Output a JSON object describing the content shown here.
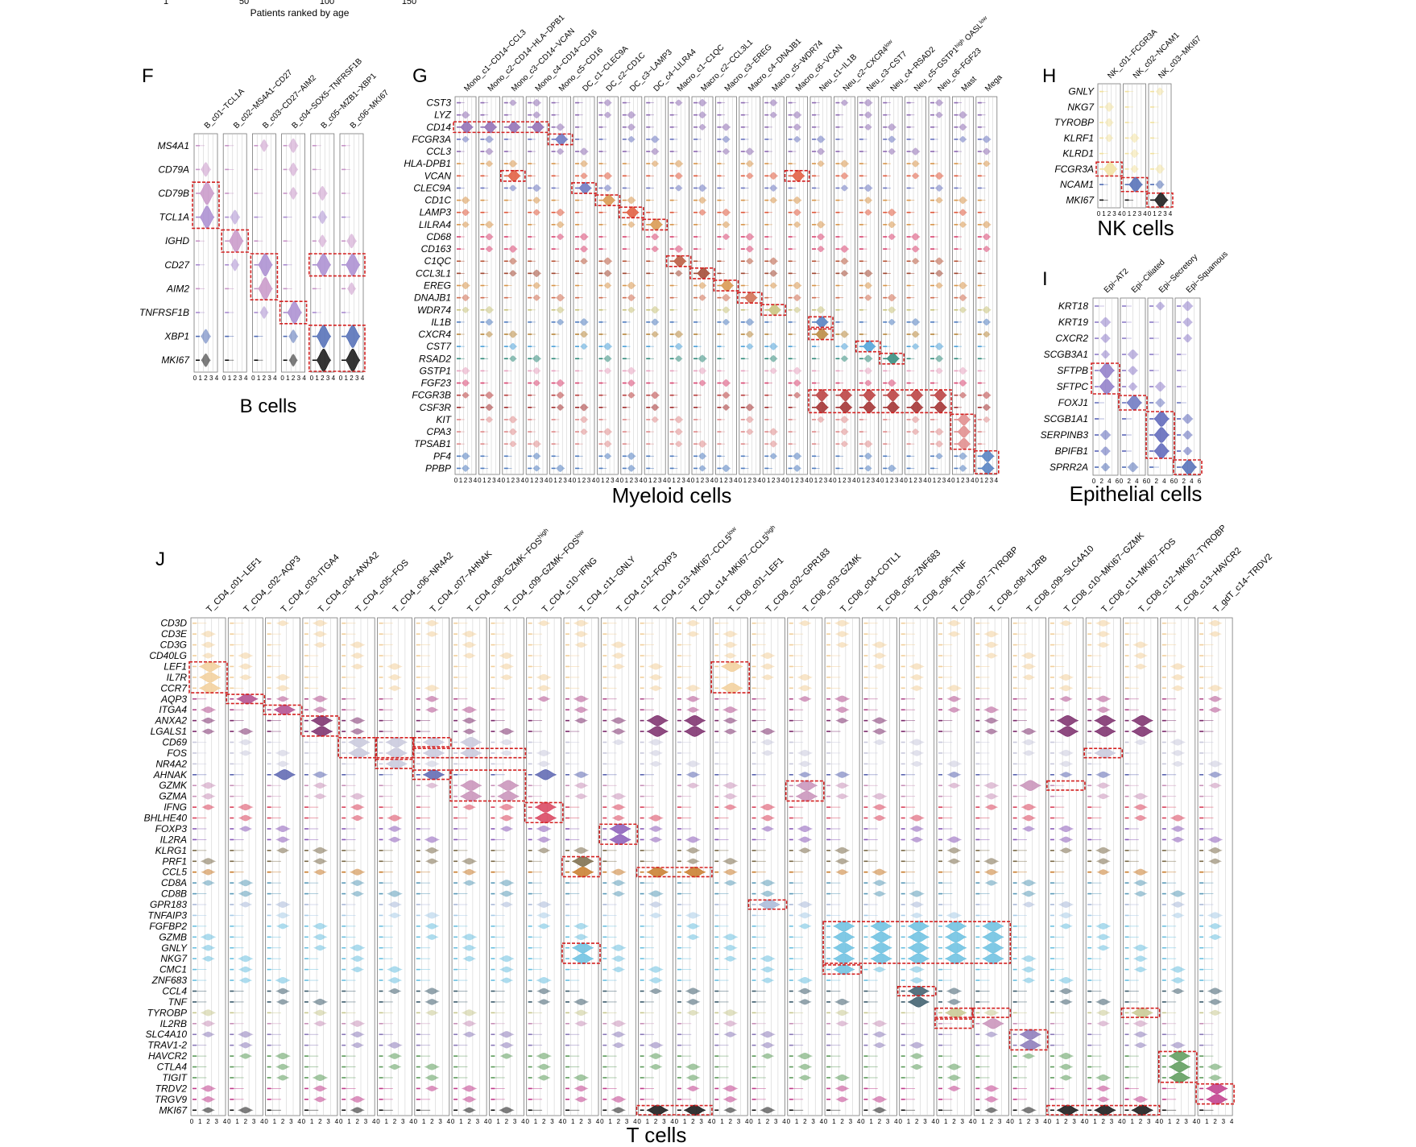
{
  "top_strip": {
    "ticks": [
      "1",
      "50",
      "100",
      "150"
    ],
    "xlabel": "Patients ranked by age"
  },
  "chart_data": [
    {
      "type": "violin",
      "panel_letter": "F",
      "title": "B cells",
      "clusters": [
        "B_c01−TCL1A",
        "B_c02−MS4A1−CD27",
        "B_c03−CD27−AIM2",
        "B_c04−SOX5−TNFRSF1B",
        "B_c05−MZB1−XBP1",
        "B_c06−MKI67"
      ],
      "genes": [
        "MS4A1",
        "CD79A",
        "CD79B",
        "TCL1A",
        "IGHD",
        "CD27",
        "AIM2",
        "TNFRSF1B",
        "XBP1",
        "MKI67"
      ],
      "gene_colors": [
        "#c896c8",
        "#c896c8",
        "#c896c8",
        "#a98cd0",
        "#c896c8",
        "#a98cd0",
        "#c896c8",
        "#a98cd0",
        "#4f6bb5",
        "#111111"
      ],
      "x_ticks": [
        "0",
        "1",
        "2",
        "3",
        "4"
      ],
      "markers": {
        "CD79B": [
          0
        ],
        "TCL1A": [
          0
        ],
        "IGHD": [
          1
        ],
        "CD27": [
          2,
          4,
          5
        ],
        "AIM2": [
          2
        ],
        "TNFRSF1B": [
          3
        ],
        "XBP1": [
          4,
          5
        ],
        "MKI67": [
          4,
          5
        ]
      },
      "highlights": [
        {
          "col": 0,
          "genes": [
            "CD79B",
            "TCL1A"
          ]
        },
        {
          "col": 1,
          "genes": [
            "IGHD"
          ]
        },
        {
          "col": 2,
          "genes": [
            "CD27",
            "AIM2"
          ]
        },
        {
          "col": 3,
          "genes": [
            "TNFRSF1B"
          ]
        },
        {
          "col": 4,
          "col_end": 5,
          "genes": [
            "CD27"
          ]
        },
        {
          "col": 4,
          "col_end": 5,
          "genes": [
            "XBP1",
            "MKI67"
          ]
        }
      ]
    },
    {
      "type": "violin",
      "panel_letter": "G",
      "title": "Myeloid cells",
      "clusters": [
        "Mono_c1−CD14−CCL3",
        "Mono_c2−CD14−HLA−DPB1",
        "Mono_c3−CD14−VCAN",
        "Mono_c4−CD14−CD16",
        "Mono_c5−CD16",
        "DC_c1−CLEC9A",
        "DC_c2−CD1C",
        "DC_c3−LAMP3",
        "DC_c4−LILRA4",
        "Macro_c1−C1QC",
        "Macro_c2−CCL3L1",
        "Macro_c3−EREG",
        "Macro_c4−DNAJB1",
        "Macro_c5−WDR74",
        "Macro_c6−VCAN",
        "Neu_c1−IL1B",
        "Neu_c2−CXCR4^low",
        "Neu_c3−CST7",
        "Neu_c4−RSAD2",
        "Neu_c5−GSTP1^high OASL^low",
        "Neu_c6−FGF23",
        "Mast",
        "Mega"
      ],
      "genes": [
        "CST3",
        "LYZ",
        "CD14",
        "FCGR3A",
        "CCL3",
        "HLA-DPB1",
        "VCAN",
        "CLEC9A",
        "CD1C",
        "LAMP3",
        "LILRA4",
        "CD68",
        "CD163",
        "C1QC",
        "CCL3L1",
        "EREG",
        "DNAJB1",
        "WDR74",
        "IL1B",
        "CXCR4",
        "CST7",
        "RSAD2",
        "GSTP1",
        "FGF23",
        "FCGR3B",
        "CSF3R",
        "KIT",
        "CPA3",
        "TPSAB1",
        "PF4",
        "PPBP"
      ],
      "gene_colors": [
        "#8e6bb3",
        "#8e6bb3",
        "#8e6bb3",
        "#6a74c0",
        "#8e6bb3",
        "#d8954a",
        "#e0583a",
        "#6a74c0",
        "#d8954a",
        "#e0583a",
        "#d8954a",
        "#d9426f",
        "#d9426f",
        "#b8563a",
        "#a0442e",
        "#d8954a",
        "#d06a4c",
        "#c8c27a",
        "#4f7cc0",
        "#b8863a",
        "#4aa0d8",
        "#2f8a7a",
        "#e8a3c0",
        "#d9426f",
        "#b83a3a",
        "#a02a2a",
        "#e08a8a",
        "#e08a8a",
        "#e08a8a",
        "#4f7cc0",
        "#4f7cc0"
      ],
      "x_ticks": [
        "0",
        "1",
        "2",
        "3",
        "4"
      ],
      "markers": {
        "CD14": [
          0,
          1,
          2,
          3
        ],
        "FCGR3A": [
          4
        ],
        "VCAN": [
          2,
          14
        ],
        "CLEC9A": [
          5
        ],
        "CD1C": [
          6
        ],
        "LAMP3": [
          7
        ],
        "LILRA4": [
          8
        ],
        "C1QC": [
          9
        ],
        "CCL3L1": [
          10
        ],
        "EREG": [
          11
        ],
        "DNAJB1": [
          12
        ],
        "WDR74": [
          13
        ],
        "IL1B": [
          15
        ],
        "CXCR4": [
          15
        ],
        "CST7": [
          17
        ],
        "RSAD2": [
          18
        ],
        "FCGR3B": [
          15,
          16,
          17,
          18,
          19,
          20
        ],
        "CSF3R": [
          15,
          16,
          17,
          18,
          19,
          20
        ],
        "KIT": [
          21
        ],
        "CPA3": [
          21
        ],
        "TPSAB1": [
          21
        ],
        "PF4": [
          22
        ],
        "PPBP": [
          22
        ]
      },
      "highlights": [
        {
          "col": 0,
          "col_end": 3,
          "genes": [
            "CD14"
          ]
        },
        {
          "col": 4,
          "genes": [
            "FCGR3A"
          ]
        },
        {
          "col": 2,
          "genes": [
            "VCAN"
          ]
        },
        {
          "col": 14,
          "genes": [
            "VCAN"
          ]
        },
        {
          "col": 5,
          "genes": [
            "CLEC9A"
          ]
        },
        {
          "col": 6,
          "genes": [
            "CD1C"
          ]
        },
        {
          "col": 7,
          "genes": [
            "LAMP3"
          ]
        },
        {
          "col": 8,
          "genes": [
            "LILRA4"
          ]
        },
        {
          "col": 9,
          "genes": [
            "C1QC"
          ]
        },
        {
          "col": 10,
          "genes": [
            "CCL3L1"
          ]
        },
        {
          "col": 11,
          "genes": [
            "EREG"
          ]
        },
        {
          "col": 12,
          "genes": [
            "DNAJB1"
          ]
        },
        {
          "col": 13,
          "genes": [
            "WDR74"
          ]
        },
        {
          "col": 15,
          "genes": [
            "IL1B"
          ]
        },
        {
          "col": 15,
          "genes": [
            "CXCR4"
          ]
        },
        {
          "col": 17,
          "genes": [
            "CST7"
          ]
        },
        {
          "col": 18,
          "genes": [
            "RSAD2"
          ]
        },
        {
          "col": 15,
          "col_end": 20,
          "genes": [
            "FCGR3B",
            "CSF3R"
          ]
        },
        {
          "col": 21,
          "genes": [
            "KIT",
            "CPA3",
            "TPSAB1"
          ]
        },
        {
          "col": 22,
          "genes": [
            "PF4",
            "PPBP"
          ]
        }
      ]
    },
    {
      "type": "violin",
      "panel_letter": "H",
      "title": "NK cells",
      "clusters": [
        "NK_c01−FCGR3A",
        "NK_c02−NCAM1",
        "NK_c03−MKI67"
      ],
      "genes": [
        "GNLY",
        "NKG7",
        "TYROBP",
        "KLRF1",
        "KLRD1",
        "FCGR3A",
        "NCAM1",
        "MKI67"
      ],
      "gene_colors": [
        "#f2e2a0",
        "#f2e2a0",
        "#f2e2a0",
        "#f2e2a0",
        "#f2e2a0",
        "#f2e2a0",
        "#4f6bb5",
        "#111111"
      ],
      "x_ticks": [
        "0",
        "1",
        "2",
        "3",
        "4"
      ],
      "markers": {
        "FCGR3A": [
          0
        ],
        "NCAM1": [
          1
        ],
        "MKI67": [
          2
        ]
      },
      "highlights": [
        {
          "col": 0,
          "genes": [
            "FCGR3A"
          ]
        },
        {
          "col": 1,
          "genes": [
            "NCAM1"
          ]
        },
        {
          "col": 2,
          "genes": [
            "MKI67"
          ]
        }
      ]
    },
    {
      "type": "violin",
      "panel_letter": "I",
      "title": "Epithelial cells",
      "clusters": [
        "Epi−AT2",
        "Epi−Ciliated",
        "Epi−Secretory",
        "Epi−Squamous"
      ],
      "genes": [
        "KRT18",
        "KRT19",
        "CXCR2",
        "SCGB3A1",
        "SFTPB",
        "SFTPC",
        "FOXJ1",
        "SCGB1A1",
        "SERPINB3",
        "BPIFB1",
        "SPRR2A"
      ],
      "gene_colors": [
        "#8e7bc8",
        "#8e7bc8",
        "#8e7bc8",
        "#8e7bc8",
        "#8e7bc8",
        "#8e7bc8",
        "#6a74c0",
        "#5a64b8",
        "#5a64b8",
        "#5a64b8",
        "#4f6bb5"
      ],
      "x_ticks": [
        "0",
        "2",
        "4",
        "6"
      ],
      "markers": {
        "SFTPB": [
          0
        ],
        "SFTPC": [
          0
        ],
        "FOXJ1": [
          1
        ],
        "SCGB1A1": [
          2
        ],
        "SERPINB3": [
          2
        ],
        "BPIFB1": [
          2
        ],
        "SPRR2A": [
          3
        ]
      },
      "highlights": [
        {
          "col": 0,
          "genes": [
            "SFTPB",
            "SFTPC"
          ]
        },
        {
          "col": 1,
          "genes": [
            "FOXJ1"
          ]
        },
        {
          "col": 2,
          "genes": [
            "SCGB1A1",
            "SERPINB3",
            "BPIFB1"
          ]
        },
        {
          "col": 3,
          "genes": [
            "SPRR2A"
          ]
        }
      ]
    },
    {
      "type": "violin",
      "panel_letter": "J",
      "title": "T cells",
      "clusters": [
        "T_CD4_c01−LEF1",
        "T_CD4_c02−AQP3",
        "T_CD4_c03−ITGA4",
        "T_CD4_c04−ANXA2",
        "T_CD4_c05−FOS",
        "T_CD4_c06−NR4A2",
        "T_CD4_c07−AHNAK",
        "T_CD4_c08−GZMK−FOS^high",
        "T_CD4_c09−GZMK−FOS^low",
        "T_CD4_c10−IFNG",
        "T_CD4_c11−GNLY",
        "T_CD4_c12−FOXP3",
        "T_CD4_c13−MKI67−CCL5^low",
        "T_CD4_c14−MKI67−CCL5^high",
        "T_CD8_c01−LEF1",
        "T_CD8_c02−GPR183",
        "T_CD8_c03−GZMK",
        "T_CD8_c04−COTL1",
        "T_CD8_c05−ZNF683",
        "T_CD8_c06−TNF",
        "T_CD8_c07−TYROBP",
        "T_CD8_c08−IL2RB",
        "T_CD8_c09−SLC4A10",
        "T_CD8_c10−MKI67−GZMK",
        "T_CD8_c11−MKI67−FOS",
        "T_CD8_c12−MKI67−TYROBP",
        "T_CD8_c13−HAVCR2",
        "T_gdT_c14−TRDV2"
      ],
      "genes": [
        "CD3D",
        "CD3E",
        "CD3G",
        "CD40LG",
        "LEF1",
        "IL7R",
        "CCR7",
        "AQP3",
        "ITGA4",
        "ANXA2",
        "LGALS1",
        "CD69",
        "FOS",
        "NR4A2",
        "AHNAK",
        "GZMK",
        "GZMA",
        "IFNG",
        "BHLHE40",
        "FOXP3",
        "IL2RA",
        "KLRG1",
        "PRF1",
        "CCL5",
        "CD8A",
        "CD8B",
        "GPR183",
        "TNFAIP3",
        "FGFBP2",
        "GZMB",
        "GNLY",
        "NKG7",
        "CMC1",
        "ZNF683",
        "CCL4",
        "TNF",
        "TYROBP",
        "IL2RB",
        "SLC4A10",
        "TRAV1-2",
        "HAVCR2",
        "CTLA4",
        "TIGIT",
        "TRDV2",
        "TRGV9",
        "MKI67"
      ],
      "gene_colors": [
        "#f2cf9a",
        "#f2cf9a",
        "#f2cf9a",
        "#f2cf9a",
        "#f2cf9a",
        "#f2cf9a",
        "#f2cf9a",
        "#b04a8c",
        "#b04a8c",
        "#7a2a6a",
        "#7a2a6a",
        "#c8c8dc",
        "#c8c8dc",
        "#c8c8dc",
        "#5a64b0",
        "#c890b8",
        "#c890b8",
        "#d8405a",
        "#d8405a",
        "#8a5ab8",
        "#8a5ab8",
        "#7a6a48",
        "#7a6a48",
        "#c87a28",
        "#5a9ab8",
        "#5a9ab8",
        "#a8b8d8",
        "#a8cce8",
        "#6ac0e0",
        "#6ac0e0",
        "#6ac0e0",
        "#6ac0e0",
        "#6ac0e0",
        "#6ac0e0",
        "#3a5a6a",
        "#3a5a6a",
        "#c8c890",
        "#c890b8",
        "#8a78b8",
        "#8a78b8",
        "#5a9a58",
        "#5a9a58",
        "#5a9a58",
        "#c03a8a",
        "#c03a8a",
        "#111111"
      ],
      "x_ticks": [
        "0",
        "1",
        "2",
        "3",
        "4"
      ],
      "markers": {
        "LEF1": [
          0,
          14
        ],
        "IL7R": [
          0
        ],
        "CCR7": [
          0,
          14
        ],
        "AQP3": [
          1
        ],
        "ITGA4": [
          2
        ],
        "ANXA2": [
          3,
          12,
          13,
          23,
          24,
          25
        ],
        "LGALS1": [
          3,
          12,
          13,
          23,
          24,
          25
        ],
        "CD69": [
          4,
          5,
          6,
          7
        ],
        "FOS": [
          4,
          5,
          6,
          7,
          24
        ],
        "NR4A2": [
          5
        ],
        "AHNAK": [
          6,
          2,
          9
        ],
        "GZMK": [
          7,
          8,
          16,
          22
        ],
        "GZMA": [
          7,
          8,
          16
        ],
        "IFNG": [
          9
        ],
        "BHLHE40": [
          9
        ],
        "FOXP3": [
          11
        ],
        "IL2RA": [
          11
        ],
        "PRF1": [
          10
        ],
        "CCL5": [
          10,
          12,
          13
        ],
        "GPR183": [
          15
        ],
        "FGFBP2": [
          17,
          18,
          19,
          20,
          21
        ],
        "GZMB": [
          17,
          18,
          19,
          20,
          21
        ],
        "GNLY": [
          10,
          17,
          18,
          19,
          20,
          21
        ],
        "NKG7": [
          10,
          17,
          18,
          19,
          20,
          21
        ],
        "CMC1": [
          17
        ],
        "CCL4": [
          19
        ],
        "TNF": [
          19
        ],
        "TYROBP": [
          20,
          25
        ],
        "IL2RB": [
          21
        ],
        "SLC4A10": [
          22
        ],
        "TRAV1-2": [
          22
        ],
        "HAVCR2": [
          26
        ],
        "CTLA4": [
          26
        ],
        "TIGIT": [
          26
        ],
        "TRDV2": [
          27
        ],
        "TRGV9": [
          27
        ],
        "MKI67": [
          12,
          13,
          23,
          24,
          25
        ]
      },
      "highlights": [
        {
          "col": 0,
          "genes": [
            "LEF1",
            "IL7R",
            "CCR7"
          ]
        },
        {
          "col": 1,
          "genes": [
            "AQP3"
          ]
        },
        {
          "col": 2,
          "genes": [
            "ITGA4"
          ]
        },
        {
          "col": 3,
          "genes": [
            "ANXA2",
            "LGALS1"
          ]
        },
        {
          "col": 4,
          "genes": [
            "CD69",
            "FOS"
          ]
        },
        {
          "col": 5,
          "genes": [
            "CD69",
            "FOS"
          ]
        },
        {
          "col": 5,
          "genes": [
            "NR4A2"
          ]
        },
        {
          "col": 6,
          "genes": [
            "CD69"
          ]
        },
        {
          "col": 6,
          "col_end": 8,
          "genes": [
            "FOS"
          ]
        },
        {
          "col": 6,
          "genes": [
            "AHNAK"
          ]
        },
        {
          "col": 7,
          "col_end": 8,
          "genes": [
            "AHNAK",
            "GZMK",
            "GZMA"
          ]
        },
        {
          "col": 9,
          "genes": [
            "IFNG",
            "BHLHE40"
          ]
        },
        {
          "col": 11,
          "genes": [
            "FOXP3",
            "IL2RA"
          ]
        },
        {
          "col": 10,
          "genes": [
            "PRF1",
            "CCL5"
          ]
        },
        {
          "col": 12,
          "col_end": 13,
          "genes": [
            "CCL5"
          ]
        },
        {
          "col": 14,
          "genes": [
            "LEF1",
            "IL7R",
            "CCR7"
          ]
        },
        {
          "col": 15,
          "genes": [
            "GPR183"
          ]
        },
        {
          "col": 16,
          "genes": [
            "GZMK",
            "GZMA"
          ]
        },
        {
          "col": 10,
          "genes": [
            "GNLY",
            "NKG7"
          ]
        },
        {
          "col": 17,
          "col_end": 21,
          "genes": [
            "FGFBP2",
            "GZMB",
            "GNLY",
            "NKG7"
          ]
        },
        {
          "col": 17,
          "genes": [
            "CMC1"
          ]
        },
        {
          "col": 19,
          "genes": [
            "CCL4"
          ]
        },
        {
          "col": 20,
          "genes": [
            "TYROBP"
          ]
        },
        {
          "col": 20,
          "genes": [
            "IL2RB"
          ]
        },
        {
          "col": 21,
          "genes": [
            "TYROBP"
          ]
        },
        {
          "col": 22,
          "genes": [
            "SLC4A10",
            "TRAV1-2"
          ]
        },
        {
          "col": 23,
          "genes": [
            "GZMK"
          ]
        },
        {
          "col": 24,
          "genes": [
            "FOS"
          ]
        },
        {
          "col": 25,
          "genes": [
            "TYROBP"
          ]
        },
        {
          "col": 26,
          "genes": [
            "HAVCR2",
            "CTLA4",
            "TIGIT"
          ]
        },
        {
          "col": 27,
          "genes": [
            "TRDV2",
            "TRGV9"
          ]
        },
        {
          "col": 12,
          "col_end": 13,
          "genes": [
            "MKI67"
          ]
        },
        {
          "col": 23,
          "col_end": 25,
          "genes": [
            "MKI67"
          ]
        }
      ]
    }
  ],
  "colors": {
    "highlight": "#d42020",
    "grid": "#c8c8c8",
    "frame": "#777777"
  }
}
